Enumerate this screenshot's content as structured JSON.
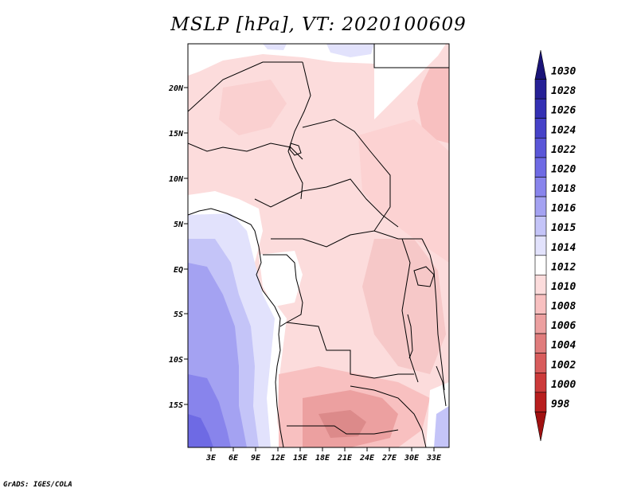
{
  "title": "MSLP [hPa], VT: 2020100609",
  "credit": "GrADS: IGES/COLA",
  "map": {
    "lat_labels": [
      "20N",
      "15N",
      "10N",
      "5N",
      "EQ",
      "5S",
      "10S",
      "15S"
    ],
    "lon_labels": [
      "3E",
      "6E",
      "9E",
      "12E",
      "15E",
      "18E",
      "21E",
      "24E",
      "27E",
      "30E",
      "33E"
    ]
  },
  "colorbar": {
    "levels": [
      "1030",
      "1028",
      "1026",
      "1024",
      "1022",
      "1020",
      "1018",
      "1016",
      "1015",
      "1014",
      "1012",
      "1010",
      "1008",
      "1006",
      "1004",
      "1002",
      "1000",
      "998"
    ],
    "colors": [
      "#1a1478",
      "#262096",
      "#3430b4",
      "#4642c8",
      "#5a56d8",
      "#6e6ae4",
      "#8884ec",
      "#a4a2f2",
      "#c4c4f8",
      "#e2e2fc",
      "#ffffff",
      "#fcdcdc",
      "#f8c0c0",
      "#eca0a0",
      "#e07c7c",
      "#d85c5c",
      "#cc3a3a",
      "#b81e1e",
      "#a01010"
    ]
  }
}
